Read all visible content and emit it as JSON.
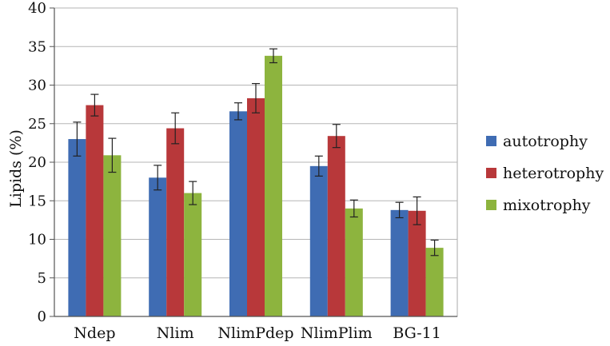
{
  "chart_data": {
    "type": "bar",
    "title": "",
    "xlabel": "",
    "ylabel": "Lipids (%)",
    "ylim": [
      0,
      40
    ],
    "yticks": [
      0,
      5,
      10,
      15,
      20,
      25,
      30,
      35,
      40
    ],
    "categories": [
      "Ndep",
      "Nlim",
      "NlimPdep",
      "NlimPlim",
      "BG-11"
    ],
    "grid": true,
    "legend_position": "right",
    "series": [
      {
        "name": "autotrophy",
        "color": "#3f6cb3",
        "values": [
          23.0,
          18.0,
          26.6,
          19.5,
          13.8
        ],
        "errors": [
          2.2,
          1.6,
          1.1,
          1.3,
          1.0
        ]
      },
      {
        "name": "heterotrophy",
        "color": "#b8383a",
        "values": [
          27.4,
          24.4,
          28.3,
          23.4,
          13.7
        ],
        "errors": [
          1.4,
          2.0,
          1.9,
          1.5,
          1.8
        ]
      },
      {
        "name": "mixotrophy",
        "color": "#8db43e",
        "values": [
          20.9,
          16.0,
          33.8,
          14.0,
          8.9
        ],
        "errors": [
          2.2,
          1.5,
          0.9,
          1.1,
          1.0
        ]
      }
    ]
  }
}
